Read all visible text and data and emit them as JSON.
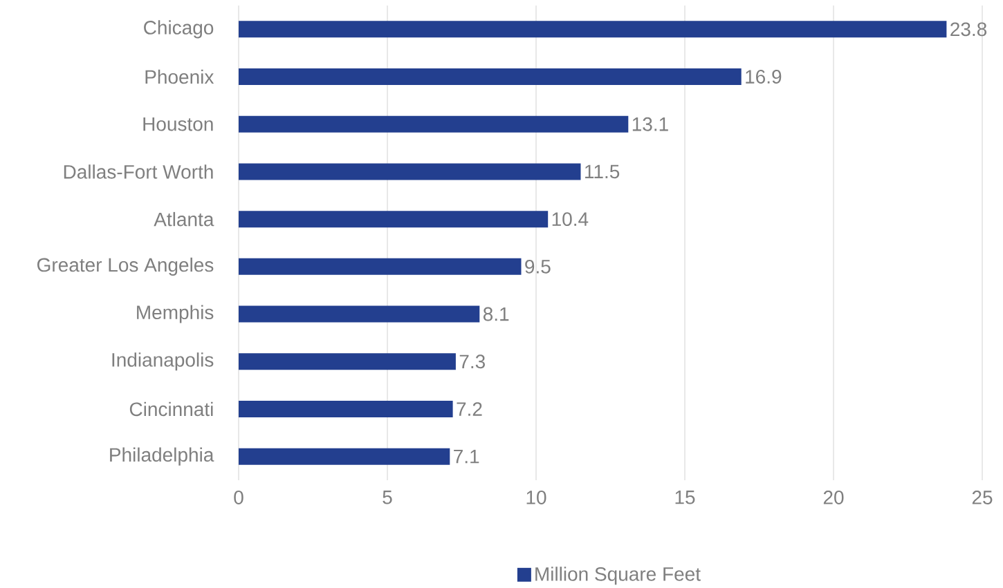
{
  "chart_data": {
    "type": "bar",
    "orientation": "horizontal",
    "categories": [
      "Chicago",
      "Phoenix",
      "Houston",
      "Dallas-Fort Worth",
      "Atlanta",
      "Greater Los Angeles",
      "Memphis",
      "Indianapolis",
      "Cincinnati",
      "Philadelphia"
    ],
    "series": [
      {
        "name": "Million Square Feet",
        "color": "#233f8f",
        "values": [
          23.8,
          16.9,
          13.1,
          11.5,
          10.4,
          9.5,
          8.1,
          7.3,
          7.2,
          7.1
        ]
      }
    ],
    "xlim": [
      0,
      25
    ],
    "xticks": [
      0,
      5,
      10,
      15,
      20,
      25
    ],
    "grid": "x",
    "legend": "bottom",
    "data_labels": true
  }
}
